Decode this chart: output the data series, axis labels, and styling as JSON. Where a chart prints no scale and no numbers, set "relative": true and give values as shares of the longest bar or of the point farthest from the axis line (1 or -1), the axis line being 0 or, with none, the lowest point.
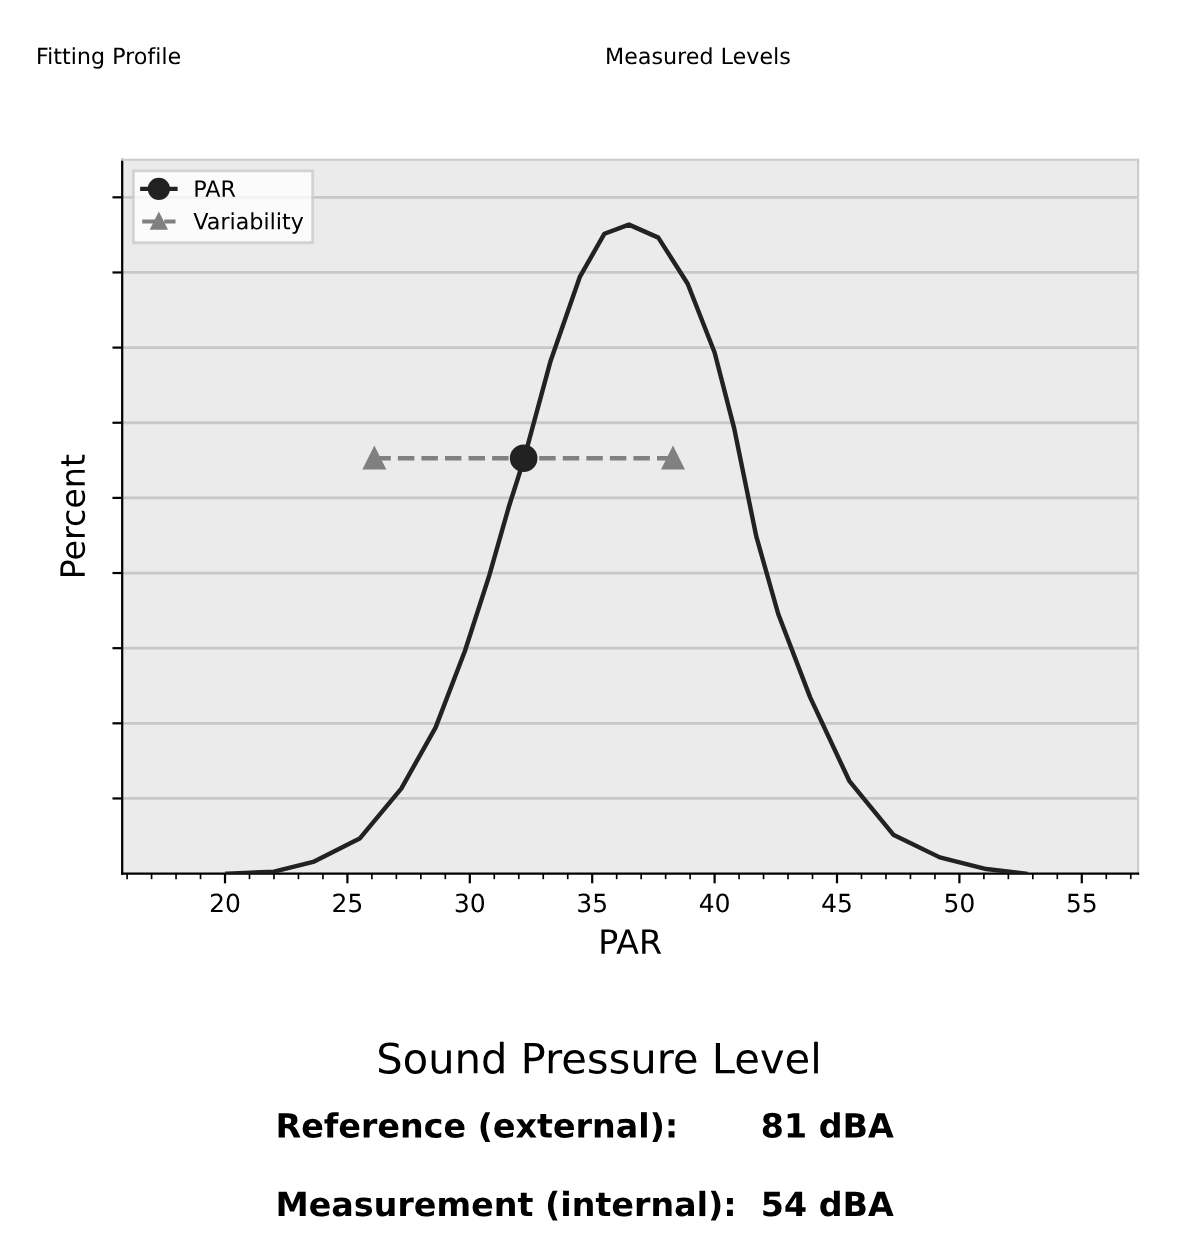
{
  "chart_data": {
    "type": "line",
    "relative": true,
    "xlabel": "PAR",
    "ylabel": "Percent",
    "xlim": [
      15.8,
      57.3
    ],
    "xticks": [
      20,
      25,
      30,
      35,
      40,
      45,
      50,
      55
    ],
    "grid": "y",
    "legend": "top left",
    "series": [
      {
        "color": "#222222",
        "marker": "none",
        "line_style": "solid",
        "x": [
          20.1,
          22.0,
          23.6,
          25.5,
          27.2,
          28.6,
          29.8,
          30.8,
          31.6,
          32.2,
          33.3,
          34.5,
          35.5,
          36.5,
          37.7,
          38.9,
          40.0,
          40.8,
          41.7,
          42.6,
          43.9,
          45.5,
          47.3,
          49.2,
          51.1,
          52.7
        ],
        "values": [
          0,
          0.003,
          0.018,
          0.054,
          0.131,
          0.225,
          0.343,
          0.46,
          0.566,
          0.637,
          0.79,
          0.92,
          0.986,
          1.0,
          0.98,
          0.909,
          0.803,
          0.686,
          0.52,
          0.4,
          0.272,
          0.143,
          0.06,
          0.025,
          0.007,
          0
        ]
      },
      {
        "type": "line",
        "name": "Variability",
        "color": "#808080",
        "marker": "triangle",
        "line_style": "dashed",
        "x": [
          26.1,
          38.3
        ],
        "values": [
          0.64,
          0.64
        ]
      },
      {
        "type": "scatter",
        "name": "PAR",
        "color": "#222222",
        "marker": "circle",
        "x": [
          32.2
        ],
        "values": [
          0.64
        ]
      }
    ],
    "annotations": [
      "Fitting Profile",
      "Measured Levels",
      "Sound Pressure Level",
      "Reference (external):",
      "81 dBA",
      "Measurement (internal):",
      "54 dBA"
    ]
  }
}
